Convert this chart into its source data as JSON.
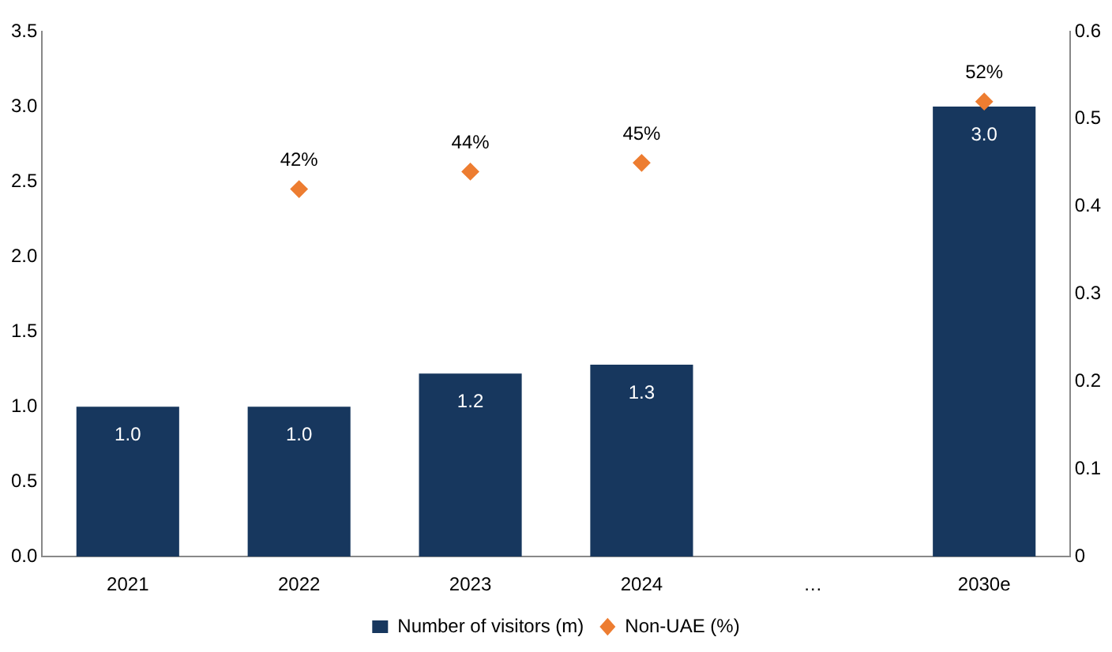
{
  "chart_data": {
    "type": "bar",
    "categories": [
      "2021",
      "2022",
      "2023",
      "2024",
      "…",
      "2030e"
    ],
    "series": [
      {
        "name": "Number of visitors (m)",
        "color": "#17375e",
        "values": [
          1.0,
          1.0,
          1.22,
          1.28,
          null,
          3.0
        ],
        "value_labels": [
          "1.0",
          "1.0",
          "1.2",
          "1.3",
          null,
          "3.0"
        ]
      },
      {
        "name": "Non-UAE (%)",
        "type": "scatter",
        "axis": "y2",
        "color": "#ed7d31",
        "marker": "diamond",
        "values": [
          null,
          0.42,
          0.44,
          0.45,
          null,
          0.52
        ],
        "value_labels": [
          null,
          "42%",
          "44%",
          "45%",
          null,
          "52%"
        ]
      }
    ],
    "ylim": [
      0,
      3.5
    ],
    "yticks": [
      {
        "value": 0,
        "label": "0.0"
      },
      {
        "value": 0.5,
        "label": "0.5"
      },
      {
        "value": 1,
        "label": "1.0"
      },
      {
        "value": 1.5,
        "label": "1.5"
      },
      {
        "value": 2,
        "label": "2.0"
      },
      {
        "value": 2.5,
        "label": "2.5"
      },
      {
        "value": 3,
        "label": "3.0"
      },
      {
        "value": 3.5,
        "label": "3.5"
      }
    ],
    "y2lim": [
      0,
      0.6
    ],
    "y2ticks": [
      0,
      0.1,
      0.2,
      0.3,
      0.4,
      0.5,
      0.6
    ],
    "grid": false,
    "legend": "bottom"
  }
}
